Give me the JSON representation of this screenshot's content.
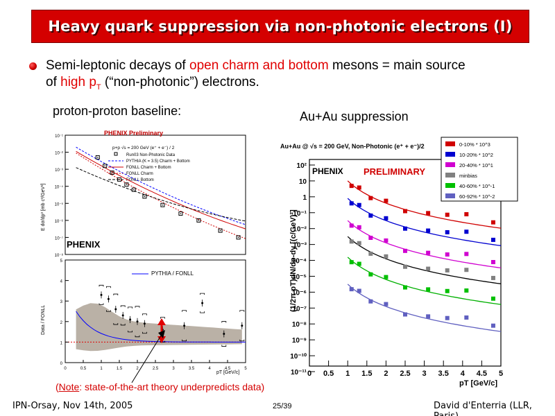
{
  "slide": {
    "title": "Heavy quark suppression via non-photonic electrons (I)",
    "bullet": {
      "part1": "Semi-leptonic decays of ",
      "highlight1": "open charm and bottom",
      "part2": " mesons = main source",
      "part3": "of ",
      "highlight2": "high p",
      "highlight2_sub": "T",
      "part4": " (“non-photonic”) electrons",
      "part5": "."
    },
    "caption_pp": "proton-proton baseline:",
    "caption_auau": "Au+Au suppression",
    "note_prefix": "(",
    "note_label": "Note",
    "note_text": ": state-of-the-art theory underpredicts data)",
    "footer_left": "IPN-Orsay, Nov 14th, 2005",
    "page": "25/39",
    "footer_right": "David d'Enterria (LLR, Paris)"
  },
  "colors": {
    "title_bg": "#d40000",
    "accent_red": "#e00000"
  },
  "chart_data": [
    {
      "type": "line",
      "panel": "pp-spectrum",
      "title": "PHENIX Preliminary",
      "subtitle": "p+p √s = 200 GeV (e⁺ + e⁻) / 2",
      "ylabel": "E dσ/dp³ [mb c³/GeV²]",
      "y_log": true,
      "ylim_exp": [
        -8,
        -1
      ],
      "ytick_labels": [
        "10⁻¹",
        "10⁻²",
        "10⁻³",
        "10⁻⁴",
        "10⁻⁵",
        "10⁻⁶",
        "10⁻⁷",
        "10⁻⁸"
      ],
      "xlim": [
        0,
        5
      ],
      "legend": [
        "Run03 Non-Photonic Data",
        "PYTHIA (K = 3.5) Charm + Bottom",
        "FONLL Charm + Bottom",
        "FONLL Charm",
        "FONLL Bottom"
      ],
      "logo": "PHENIX",
      "data_x": [
        0.9,
        1.1,
        1.3,
        1.5,
        1.7,
        1.9,
        2.2,
        2.7,
        3.2,
        3.7,
        4.3,
        4.8
      ],
      "data_y_exp": [
        -2.3,
        -2.8,
        -3.2,
        -3.6,
        -3.9,
        -4.2,
        -4.6,
        -5.1,
        -5.6,
        -6.0,
        -6.6,
        -7.0
      ]
    },
    {
      "type": "scatter",
      "panel": "pp-ratio",
      "ylabel": "Data / FONLL",
      "xlabel": "pT [GeV/c]",
      "xlim": [
        0,
        5
      ],
      "ylim": [
        0,
        5
      ],
      "xtick_labels": [
        "0",
        "0.5",
        "1",
        "1.5",
        "2",
        "2.5",
        "3",
        "3.5",
        "4",
        "4.5",
        "5"
      ],
      "ytick_labels": [
        "0",
        "1",
        "2",
        "3",
        "4",
        "5"
      ],
      "legend": [
        "PYTHIA / FONLL"
      ],
      "x": [
        1.0,
        1.2,
        1.4,
        1.6,
        1.8,
        2.0,
        2.2,
        2.7,
        3.3,
        3.8,
        4.4,
        4.9
      ],
      "y": [
        3.3,
        3.1,
        2.6,
        2.3,
        2.1,
        2.0,
        1.9,
        1.6,
        1.8,
        2.9,
        1.4,
        1.8
      ]
    },
    {
      "type": "scatter",
      "panel": "auau-spectra",
      "title": "Au+Au @ √s = 200 GeV, Non-Photonic (e⁺ + e⁻)/2",
      "ylabel": "(1/2π pT)dN/dp-dy [(c/GeV)²]",
      "xlabel": "pT [GeV/c]",
      "y_log": true,
      "ylim_exp": [
        -11,
        2
      ],
      "xlim": [
        0,
        5
      ],
      "ytick_labels": [
        "10⁻¹¹",
        "10⁻¹⁰",
        "10⁻⁹",
        "10⁻⁸",
        "10⁻⁷",
        "10⁻⁶",
        "10⁻⁵",
        "10⁻⁴",
        "10⁻³",
        "10⁻²",
        "10⁻¹",
        "1",
        "10",
        "10²"
      ],
      "xtick_labels": [
        "0",
        "0.5",
        "1",
        "1.5",
        "2",
        "2.5",
        "3",
        "3.5",
        "4",
        "4.5",
        "5"
      ],
      "logo": "PHENIX",
      "preliminary_label": "PRELIMINARY",
      "x": [
        1.1,
        1.3,
        1.6,
        2.0,
        2.5,
        3.1,
        3.6,
        4.1,
        4.8
      ],
      "series": [
        {
          "name": "0-10% * 10^3",
          "color": "#d00000",
          "start_exp": 1.0
        },
        {
          "name": "10-20% * 10^2",
          "color": "#0000d0",
          "start_exp": -0.1
        },
        {
          "name": "20-40% * 10^1",
          "color": "#d000d0",
          "start_exp": -1.5
        },
        {
          "name": "minbias",
          "color": "#808080",
          "start_exp": -2.5
        },
        {
          "name": "40-60% * 10^-1",
          "color": "#00c000",
          "start_exp": -3.8
        },
        {
          "name": "60-92% * 10^-2",
          "color": "#6060c0",
          "start_exp": -5.5
        }
      ]
    }
  ]
}
